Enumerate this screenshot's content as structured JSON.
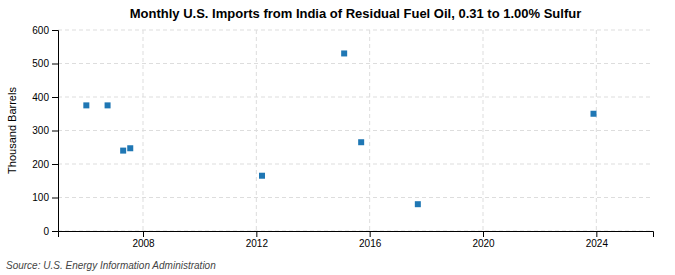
{
  "chart_data": {
    "type": "scatter",
    "title": "Monthly U.S. Imports from India of Residual Fuel Oil, 0.31 to 1.00% Sulfur",
    "ylabel": "Thousand Barrels",
    "source": "Source: U.S. Energy Information Administration",
    "x": [
      2006.0,
      2006.75,
      2007.3,
      2007.55,
      2012.2,
      2015.1,
      2015.7,
      2017.7,
      2023.9
    ],
    "values": [
      375,
      375,
      240,
      247,
      165,
      530,
      265,
      80,
      350
    ],
    "marker": "square",
    "xlim": [
      2005.0,
      2026.0
    ],
    "ylim": [
      0,
      600
    ],
    "xticks": [
      2008,
      2012,
      2016,
      2020,
      2024
    ],
    "yticks": [
      0,
      100,
      200,
      300,
      400,
      500,
      600
    ],
    "grid": true
  }
}
